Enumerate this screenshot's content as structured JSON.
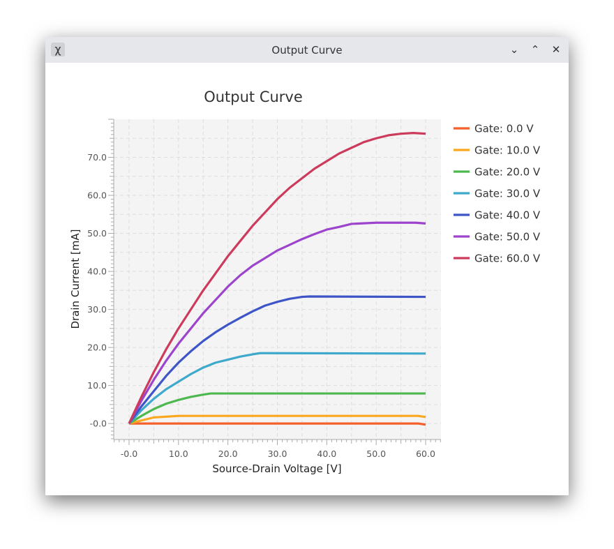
{
  "window": {
    "title": "Output Curve",
    "buttons": {
      "minimize": "⌄",
      "maximize": "⌃",
      "close": "✕"
    }
  },
  "chart_data": {
    "type": "line",
    "title": "Output Curve",
    "xlabel": "Source-Drain Voltage  [V]",
    "ylabel": "Drain Current  [mA]",
    "xlim": [
      -3.1,
      63.1
    ],
    "ylim": [
      -4.2,
      80
    ],
    "xticks": [
      0,
      10,
      20,
      30,
      40,
      50,
      60
    ],
    "xtick_labels": [
      "-0.0",
      "10.0",
      "20.0",
      "30.0",
      "40.0",
      "50.0",
      "60.0"
    ],
    "yticks": [
      0,
      10,
      20,
      30,
      40,
      50,
      60,
      70
    ],
    "ytick_labels": [
      "-0.0",
      "10.0",
      "20.0",
      "30.0",
      "40.0",
      "50.0",
      "60.0",
      "70.0"
    ],
    "grid": true,
    "legend_position": "right",
    "series": [
      {
        "name": "Gate: 0.0 V",
        "color": "#f5602d",
        "points": [
          [
            0,
            0
          ],
          [
            58.5,
            0
          ],
          [
            60,
            -0.3
          ]
        ]
      },
      {
        "name": "Gate: 10.0 V",
        "color": "#fca81f",
        "points": [
          [
            0,
            0
          ],
          [
            2.5,
            0.8
          ],
          [
            5,
            1.6
          ],
          [
            7.5,
            1.8
          ],
          [
            10,
            2
          ],
          [
            58.5,
            2
          ],
          [
            60,
            1.7
          ]
        ]
      },
      {
        "name": "Gate: 20.0 V",
        "color": "#4db84f",
        "points": [
          [
            0,
            0
          ],
          [
            2.5,
            2
          ],
          [
            5,
            3.8
          ],
          [
            7.5,
            5.2
          ],
          [
            10,
            6.2
          ],
          [
            12.5,
            7
          ],
          [
            15,
            7.6
          ],
          [
            16.5,
            7.9
          ],
          [
            60,
            7.9
          ]
        ]
      },
      {
        "name": "Gate: 30.0 V",
        "color": "#3fa9cc",
        "points": [
          [
            0,
            0
          ],
          [
            2.5,
            3.5
          ],
          [
            5,
            6.5
          ],
          [
            7.5,
            9
          ],
          [
            10,
            11
          ],
          [
            12.5,
            13
          ],
          [
            15,
            14.7
          ],
          [
            17.5,
            16
          ],
          [
            20,
            16.8
          ],
          [
            22.5,
            17.6
          ],
          [
            25,
            18.2
          ],
          [
            26.5,
            18.5
          ],
          [
            60,
            18.4
          ]
        ]
      },
      {
        "name": "Gate: 40.0 V",
        "color": "#3e55c8",
        "points": [
          [
            0,
            0
          ],
          [
            2.5,
            4.5
          ],
          [
            5,
            8.5
          ],
          [
            7.5,
            12.5
          ],
          [
            10,
            16
          ],
          [
            12.5,
            19
          ],
          [
            15,
            21.7
          ],
          [
            17.5,
            24
          ],
          [
            20,
            26
          ],
          [
            22.5,
            27.8
          ],
          [
            25,
            29.5
          ],
          [
            27.5,
            31
          ],
          [
            30,
            32
          ],
          [
            32.5,
            32.8
          ],
          [
            35,
            33.3
          ],
          [
            36.5,
            33.4
          ],
          [
            60,
            33.3
          ]
        ]
      },
      {
        "name": "Gate: 50.0 V",
        "color": "#9c44cc",
        "points": [
          [
            0,
            0
          ],
          [
            2.5,
            6
          ],
          [
            5,
            11.5
          ],
          [
            7.5,
            16.5
          ],
          [
            10,
            21
          ],
          [
            12.5,
            25
          ],
          [
            15,
            29
          ],
          [
            17.5,
            32.5
          ],
          [
            20,
            36
          ],
          [
            22.5,
            39
          ],
          [
            25,
            41.5
          ],
          [
            27.5,
            43.5
          ],
          [
            30,
            45.5
          ],
          [
            32.5,
            47
          ],
          [
            35,
            48.5
          ],
          [
            37.5,
            49.8
          ],
          [
            40,
            51
          ],
          [
            42.5,
            51.7
          ],
          [
            45,
            52.5
          ],
          [
            50,
            52.8
          ],
          [
            58,
            52.8
          ],
          [
            60,
            52.6
          ]
        ]
      },
      {
        "name": "Gate: 60.0 V",
        "color": "#cc3b5c",
        "points": [
          [
            0,
            0
          ],
          [
            2.5,
            7
          ],
          [
            5,
            13.5
          ],
          [
            7.5,
            19.5
          ],
          [
            10,
            25
          ],
          [
            12.5,
            30
          ],
          [
            15,
            35
          ],
          [
            17.5,
            39.5
          ],
          [
            20,
            44
          ],
          [
            22.5,
            48
          ],
          [
            25,
            52
          ],
          [
            27.5,
            55.5
          ],
          [
            30,
            59
          ],
          [
            32.5,
            62
          ],
          [
            35,
            64.5
          ],
          [
            37.5,
            67
          ],
          [
            40,
            69
          ],
          [
            42.5,
            71
          ],
          [
            45,
            72.5
          ],
          [
            47.5,
            74
          ],
          [
            50,
            75
          ],
          [
            52.5,
            75.8
          ],
          [
            55,
            76.2
          ],
          [
            57.5,
            76.4
          ],
          [
            60,
            76.2
          ]
        ]
      }
    ]
  }
}
